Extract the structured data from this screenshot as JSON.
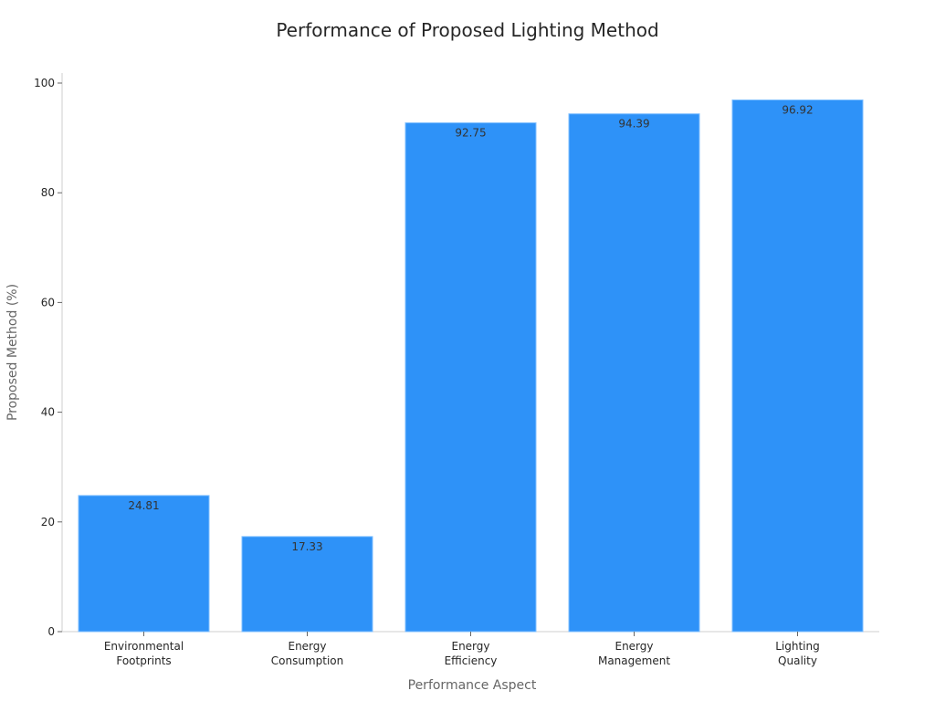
{
  "chart_data": {
    "type": "bar",
    "title": "Performance of Proposed Lighting Method",
    "xlabel": "Performance Aspect",
    "ylabel": "Proposed Method (%)",
    "categories": [
      [
        "Environmental",
        "Footprints"
      ],
      [
        "Energy",
        "Consumption"
      ],
      [
        "Energy",
        "Efficiency"
      ],
      [
        "Energy",
        "Management"
      ],
      [
        "Lighting",
        "Quality"
      ]
    ],
    "values": [
      24.81,
      17.33,
      92.75,
      94.39,
      96.92
    ],
    "value_labels": [
      "24.81",
      "17.33",
      "92.75",
      "94.39",
      "96.92"
    ],
    "ylim": [
      0,
      100
    ],
    "yticks": [
      0,
      20,
      40,
      60,
      80,
      100
    ],
    "ytick_labels": [
      "0",
      "20",
      "40",
      "60",
      "80",
      "100"
    ],
    "grid": false,
    "bar_color": "#2E92F8",
    "bar_edge_color": "#7FBFFF"
  }
}
